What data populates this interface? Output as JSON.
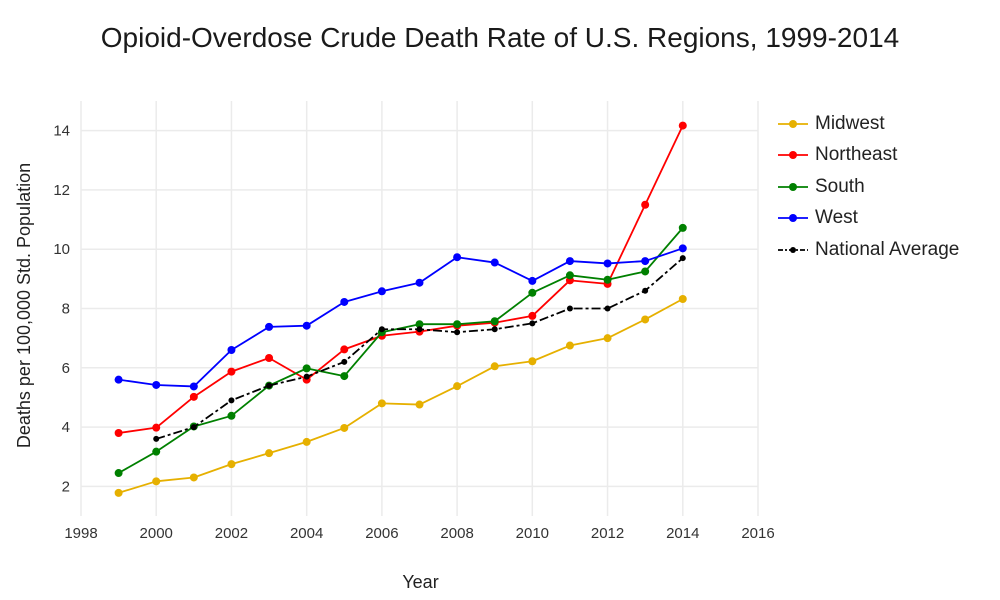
{
  "chart_data": {
    "type": "line",
    "title": "Opioid-Overdose Crude Death Rate of U.S. Regions, 1999-2014",
    "xlabel": "Year",
    "ylabel": "Deaths per 100,000 Std. Population",
    "xlim": [
      1998,
      2016
    ],
    "ylim": [
      1,
      15
    ],
    "x_ticks": [
      1998,
      2000,
      2002,
      2004,
      2006,
      2008,
      2010,
      2012,
      2014,
      2016
    ],
    "y_ticks": [
      2,
      4,
      6,
      8,
      10,
      12,
      14
    ],
    "grid": true,
    "legend_position": "top-right",
    "series": [
      {
        "name": "Midwest",
        "color": "#e6b000",
        "dash": "solid",
        "x": [
          1999,
          2000,
          2001,
          2002,
          2003,
          2004,
          2005,
          2006,
          2007,
          2008,
          2009,
          2010,
          2011,
          2012,
          2013,
          2014
        ],
        "values": [
          1.78,
          2.17,
          2.3,
          2.75,
          3.12,
          3.5,
          3.97,
          4.8,
          4.76,
          5.38,
          6.05,
          6.22,
          6.75,
          7.0,
          7.63,
          8.32
        ]
      },
      {
        "name": "Northeast",
        "color": "#ff0000",
        "dash": "solid",
        "x": [
          1999,
          2000,
          2001,
          2002,
          2003,
          2004,
          2005,
          2006,
          2007,
          2008,
          2009,
          2010,
          2011,
          2012,
          2013,
          2014
        ],
        "values": [
          3.8,
          3.98,
          5.02,
          5.87,
          6.33,
          5.6,
          6.62,
          7.08,
          7.22,
          7.42,
          7.52,
          7.75,
          8.95,
          8.83,
          11.5,
          14.17
        ]
      },
      {
        "name": "South",
        "color": "#008000",
        "dash": "solid",
        "x": [
          1999,
          2000,
          2001,
          2002,
          2003,
          2004,
          2005,
          2006,
          2007,
          2008,
          2009,
          2010,
          2011,
          2012,
          2013,
          2014
        ],
        "values": [
          2.45,
          3.17,
          4.02,
          4.38,
          5.4,
          5.98,
          5.72,
          7.2,
          7.47,
          7.47,
          7.57,
          8.53,
          9.12,
          8.97,
          9.25,
          10.72
        ]
      },
      {
        "name": "West",
        "color": "#0000ff",
        "dash": "solid",
        "x": [
          1999,
          2000,
          2001,
          2002,
          2003,
          2004,
          2005,
          2006,
          2007,
          2008,
          2009,
          2010,
          2011,
          2012,
          2013,
          2014
        ],
        "values": [
          5.6,
          5.42,
          5.37,
          6.6,
          7.38,
          7.42,
          8.22,
          8.58,
          8.87,
          9.73,
          9.55,
          8.93,
          9.6,
          9.52,
          9.6,
          10.03
        ]
      },
      {
        "name": "National Average",
        "color": "#000000",
        "dash": "dashdot",
        "x": [
          2000,
          2001,
          2002,
          2003,
          2004,
          2005,
          2006,
          2007,
          2008,
          2009,
          2010,
          2011,
          2012,
          2013,
          2014
        ],
        "values": [
          3.6,
          4.0,
          4.9,
          5.4,
          5.7,
          6.2,
          7.3,
          7.3,
          7.2,
          7.3,
          7.5,
          8.0,
          8.0,
          8.6,
          9.7
        ]
      }
    ]
  }
}
